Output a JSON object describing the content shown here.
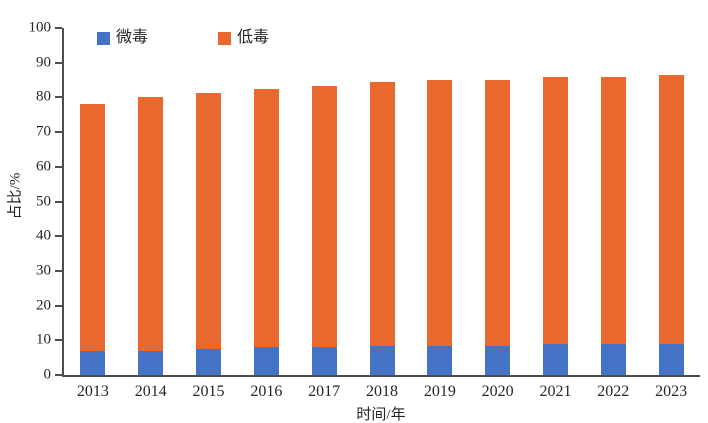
{
  "chart_data": {
    "type": "bar",
    "stacked": true,
    "title": "",
    "xlabel": "时间/年",
    "ylabel": "占比/%",
    "categories": [
      "2013",
      "2014",
      "2015",
      "2016",
      "2017",
      "2018",
      "2019",
      "2020",
      "2021",
      "2022",
      "2023"
    ],
    "series": [
      {
        "name": "微毒",
        "color": "#4472c4",
        "values": [
          7,
          7,
          7.5,
          8,
          8,
          8.5,
          8.5,
          8.5,
          9,
          9,
          9
        ]
      },
      {
        "name": "低毒",
        "color": "#e8682e",
        "values": [
          71,
          73,
          73.8,
          74.3,
          75.4,
          75.9,
          76.5,
          76.5,
          77,
          77,
          77.5
        ]
      }
    ],
    "ylim": [
      0,
      100
    ],
    "ytick_step": 10,
    "ytick_labels": [
      "0",
      "10",
      "20",
      "30",
      "40",
      "50",
      "60",
      "70",
      "80",
      "90",
      "100"
    ],
    "grid": false,
    "legend_position": "top-left",
    "axis_color": "#4d4d4d",
    "text_color": "#262626",
    "background_color": "#ffffff"
  }
}
